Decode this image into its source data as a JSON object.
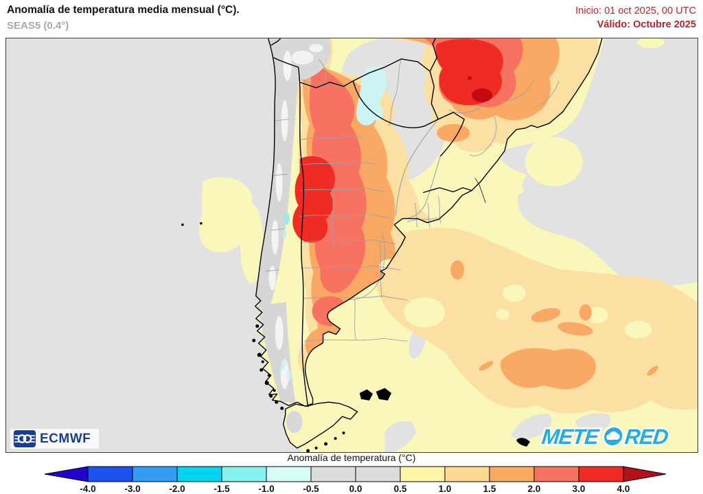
{
  "header": {
    "title": "Anomalía de temperatura media mensual (°C).",
    "subtitle": "SEAS5 (0.4°)",
    "init_label": "Inicio: 01 oct 2025, 00 UTC",
    "valid_label": "Válido: Octubre 2025",
    "accent_color": "#b2262b",
    "subtitle_color": "#a9a9a9"
  },
  "logos": {
    "ecmwf": {
      "text": "ECMWF",
      "color": "#1b3d91"
    },
    "meteored": {
      "text_left": "METE",
      "text_right": "RED",
      "color": "#29abe2"
    }
  },
  "colorbar": {
    "label": "Anomalía de temperatura (°C)",
    "ticks": [
      "-4.0",
      "-3.0",
      "-2.0",
      "-1.5",
      "-1.0",
      "-0.5",
      "0.0",
      "0.5",
      "1.0",
      "1.5",
      "2.0",
      "3.0",
      "4.0"
    ],
    "segment_colors": [
      "#1e52f0",
      "#339cf5",
      "#00d4f0",
      "#86f2f0",
      "#d5fcf5",
      "#dcdcdc",
      "#dcdcdc",
      "#fdf6a8",
      "#fcda92",
      "#fbaa60",
      "#f87261",
      "#ee2c24"
    ],
    "arrow_left_color": "#2400cd",
    "arrow_right_color": "#b11117",
    "outline_color": "#000000"
  },
  "map_palette": {
    "neutral_gray": "#e2e2e2",
    "warm_0_5_1": "#faf7ba",
    "warm_1_1_5": "#fbdfa3",
    "warm_1_5_2": "#f9a963",
    "warm_2_3": "#f87261",
    "warm_3_4": "#ee2c24",
    "warm_over_4": "#c40a11",
    "cool_light": "#c9f2f0",
    "terrain_gray": "#d6d6d6"
  }
}
